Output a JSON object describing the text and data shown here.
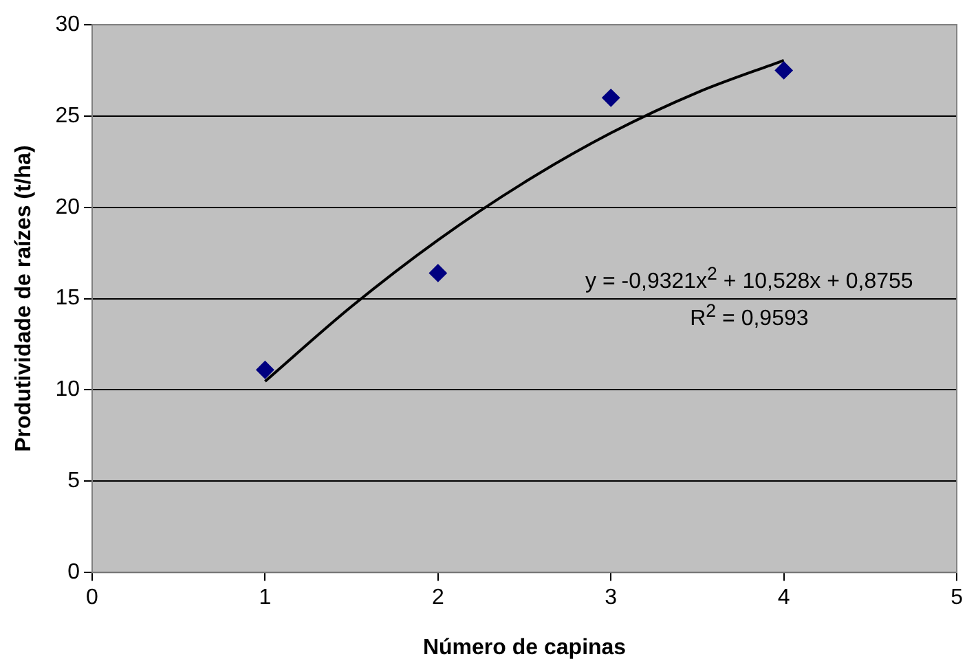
{
  "chart_data": {
    "type": "scatter",
    "xlabel": "Número de capinas",
    "ylabel": "Produtividade de raízes (t/ha)",
    "x": [
      1,
      2,
      3,
      4
    ],
    "series": [
      {
        "color": "#000080",
        "marker": "diamond",
        "values": [
          11.1,
          16.4,
          26.0,
          27.5
        ]
      },
      {
        "type": "line",
        "color": "#000000",
        "marker": "none",
        "line_style": "solid",
        "x": [
          1,
          1.5,
          2,
          2.5,
          3,
          3.5,
          4
        ],
        "values": [
          10.47,
          14.57,
          18.21,
          21.37,
          24.07,
          26.29,
          28.05
        ]
      }
    ],
    "xlim": [
      0,
      5
    ],
    "xticks": [
      0,
      1,
      2,
      3,
      4,
      5
    ],
    "ylim": [
      0,
      30
    ],
    "yticks": [
      0,
      5,
      10,
      15,
      20,
      25,
      30
    ],
    "grid": "y",
    "legend": false,
    "annotations": [
      "y = -0,9321x$^{2}$ + 10,528x + 0,8755",
      "R$^{2}$ = 0,9593"
    ]
  }
}
